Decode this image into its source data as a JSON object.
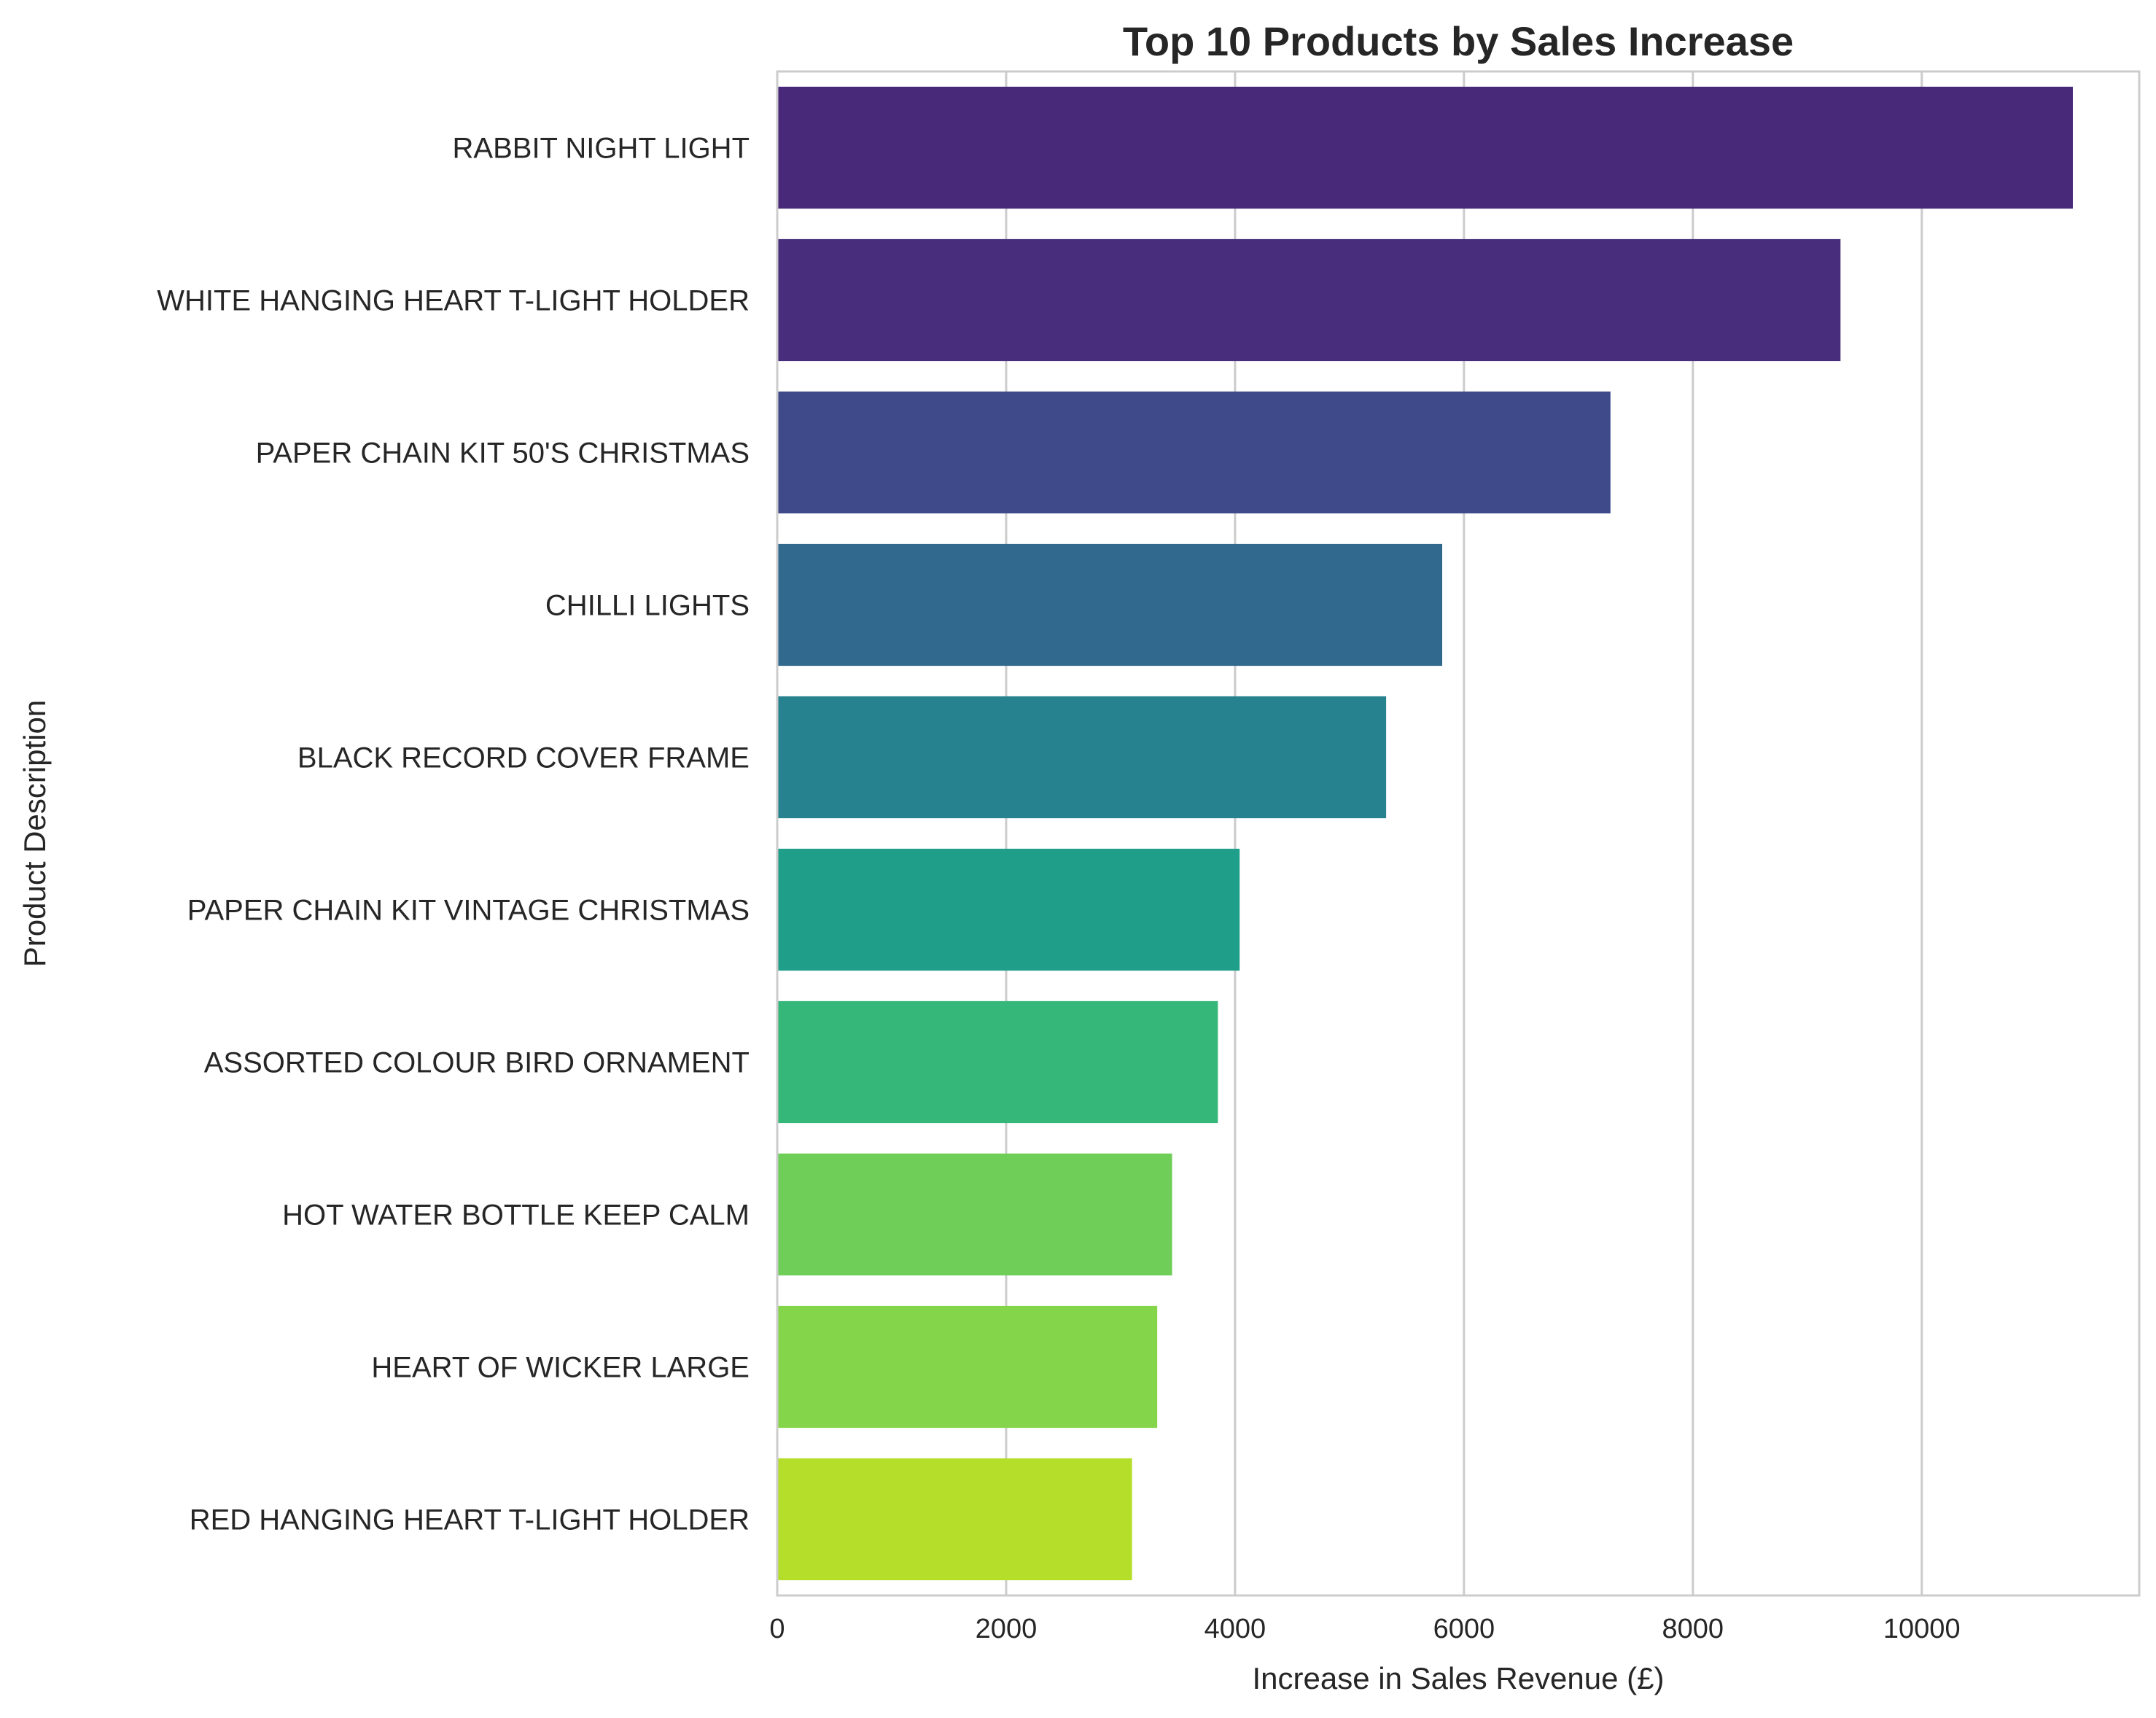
{
  "chart_data": {
    "type": "bar",
    "orientation": "horizontal",
    "title": "Top 10 Products by Sales Increase",
    "xlabel": "Increase in Sales Revenue (£)",
    "ylabel": "Product Description",
    "categories": [
      "RABBIT NIGHT LIGHT",
      "WHITE HANGING HEART T-LIGHT HOLDER",
      "PAPER CHAIN KIT 50'S CHRISTMAS",
      "CHILLI LIGHTS",
      "BLACK RECORD COVER FRAME",
      "PAPER CHAIN KIT VINTAGE CHRISTMAS",
      "ASSORTED COLOUR BIRD ORNAMENT",
      "HOT WATER BOTTLE KEEP CALM",
      "HEART OF WICKER LARGE",
      "RED HANGING HEART T-LIGHT HOLDER"
    ],
    "values": [
      11320,
      9290,
      7280,
      5810,
      5320,
      4040,
      3850,
      3450,
      3320,
      3100
    ],
    "colors": [
      "#482878",
      "#472d7b",
      "#3e4a89",
      "#31688e",
      "#26828e",
      "#1f9e89",
      "#35b779",
      "#6ece58",
      "#85d54a",
      "#b5de2b"
    ],
    "xlim": [
      0,
      11900
    ],
    "xticks": [
      0,
      2000,
      4000,
      6000,
      8000,
      10000
    ],
    "xtick_labels": [
      "0",
      "2000",
      "4000",
      "6000",
      "8000",
      "10000"
    ],
    "grid": "vertical",
    "legend": "none"
  }
}
